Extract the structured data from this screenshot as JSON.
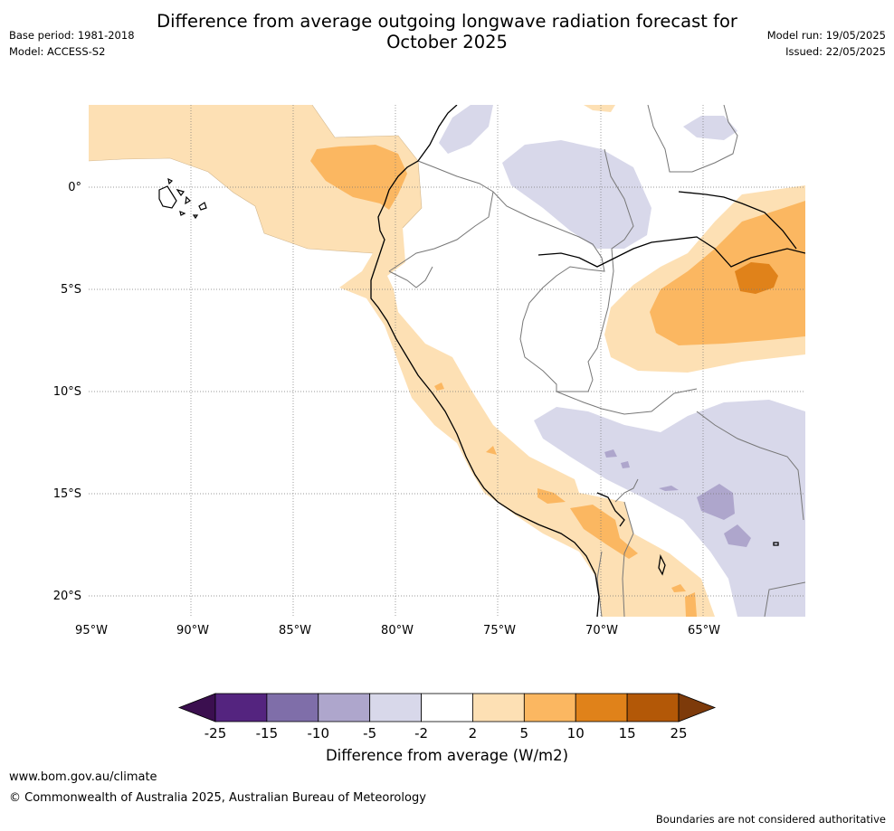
{
  "title": {
    "line1": "Difference from average outgoing longwave radiation forecast for",
    "line2": "October 2025"
  },
  "meta": {
    "base_period": "Base period: 1981-2018",
    "model": "Model: ACCESS-S2",
    "model_run": "Model run: 19/05/2025",
    "issued": "Issued: 22/05/2025"
  },
  "map": {
    "x_ticks": [
      "95°W",
      "90°W",
      "85°W",
      "80°W",
      "75°W",
      "70°W",
      "65°W"
    ],
    "y_ticks": [
      "0°",
      "5°S",
      "10°S",
      "15°S",
      "20°S"
    ]
  },
  "colorbar": {
    "labels": [
      "-25",
      "-15",
      "-10",
      "-5",
      "-2",
      "2",
      "5",
      "10",
      "15",
      "25"
    ],
    "colors": [
      "#3b0f4f",
      "#54247f",
      "#7f6ea9",
      "#aea6cc",
      "#d8d8ea",
      "#ffffff",
      "#fde0b4",
      "#fbb761",
      "#e0821a",
      "#b35807",
      "#7d3a0a"
    ],
    "title": "Difference from average (W/m2)"
  },
  "footer": {
    "url": "www.bom.gov.au/climate",
    "copyright": "© Commonwealth of Australia 2025, Australian Bureau of Meteorology",
    "note": "Boundaries are not considered authoritative"
  }
}
